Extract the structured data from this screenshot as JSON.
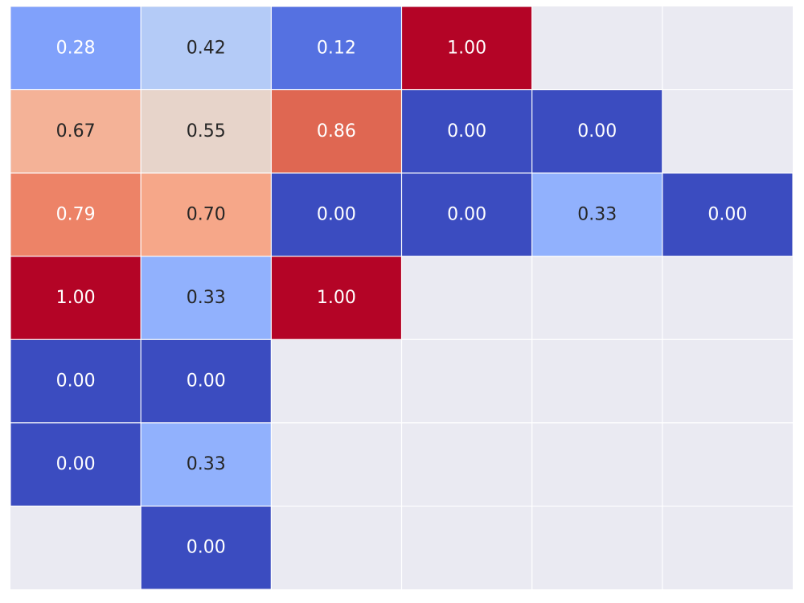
{
  "chart_data": {
    "type": "heatmap",
    "title": "",
    "xlabel": "",
    "ylabel": "",
    "colormap": "coolwarm",
    "value_range": [
      0,
      1
    ],
    "grid": true,
    "background_color": "#eaeaf2",
    "gridline_color": "#ffffff",
    "annotation_dark_color": "#262626",
    "annotation_light_color": "#ffffff",
    "rows": 7,
    "cols": 6,
    "values": [
      [
        0.28,
        0.42,
        0.12,
        1.0,
        null,
        null
      ],
      [
        0.67,
        0.55,
        0.86,
        0.0,
        0.0,
        null
      ],
      [
        0.79,
        0.7,
        0.0,
        0.0,
        0.33,
        0.0
      ],
      [
        1.0,
        0.33,
        1.0,
        null,
        null,
        null
      ],
      [
        0.0,
        0.0,
        null,
        null,
        null,
        null
      ],
      [
        0.0,
        0.33,
        null,
        null,
        null,
        null
      ],
      [
        null,
        0.0,
        null,
        null,
        null,
        null
      ]
    ]
  }
}
